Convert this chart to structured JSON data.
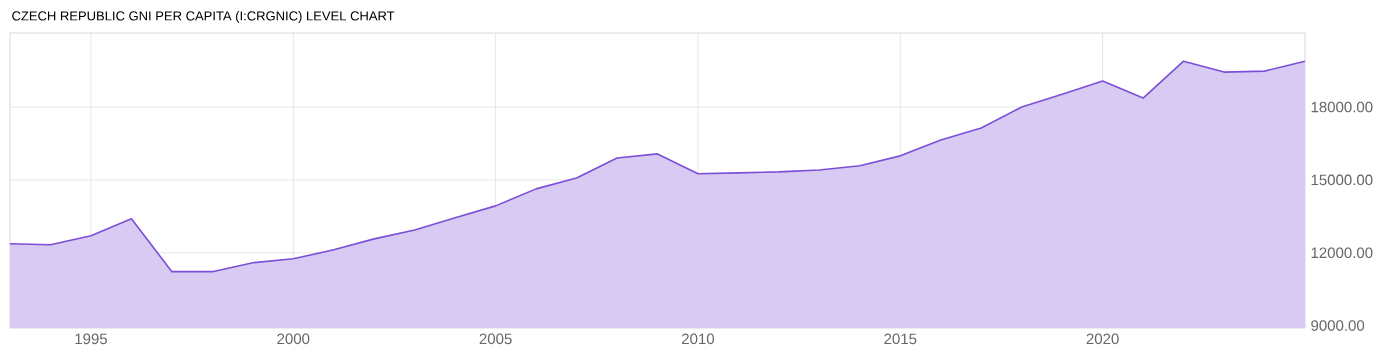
{
  "chart_data": {
    "type": "area",
    "title": "CZECH REPUBLIC GNI PER CAPITA (I:CRGNIC) LEVEL CHART",
    "x": [
      1993,
      1994,
      1995,
      1996,
      1997,
      1998,
      1999,
      2000,
      2001,
      2002,
      2003,
      2004,
      2005,
      2006,
      2007,
      2008,
      2009,
      2010,
      2011,
      2012,
      2013,
      2014,
      2015,
      2016,
      2017,
      2018,
      2019,
      2020,
      2021,
      2022,
      2023,
      2024,
      2025
    ],
    "series": [
      {
        "color": "#7b4fd6",
        "values": [
          12370,
          12330,
          12700,
          13400,
          11220,
          11220,
          11590,
          11750,
          12120,
          12570,
          12940,
          13440,
          13930,
          14630,
          15080,
          15900,
          16070,
          15250,
          15290,
          15330,
          15410,
          15580,
          15990,
          16640,
          17140,
          18000,
          18530,
          19070,
          18370,
          19890,
          19440,
          19480,
          19890
        ]
      }
    ],
    "xlim": [
      1993,
      2025
    ],
    "ylim": [
      8900,
      21050
    ],
    "xticks": [
      1995,
      2000,
      2005,
      2010,
      2015,
      2020
    ],
    "yticks": [
      {
        "value": 9000,
        "label": "9000.00"
      },
      {
        "value": 12000,
        "label": "12000.00"
      },
      {
        "value": 15000,
        "label": "15000.00"
      },
      {
        "value": 18000,
        "label": "18000.00"
      }
    ],
    "grid": true
  }
}
